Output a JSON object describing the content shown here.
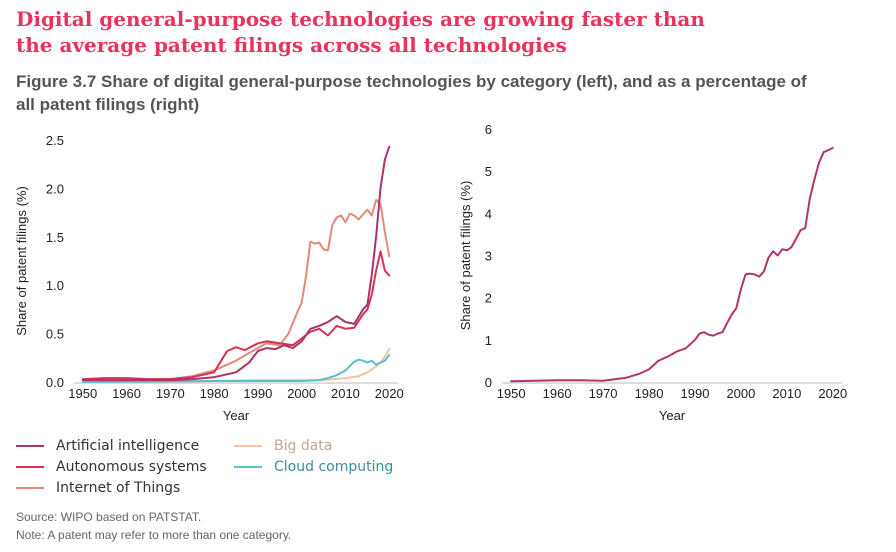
{
  "headline": {
    "line1": "Digital general-purpose technologies are growing faster than",
    "line2": "the average patent filings across all technologies"
  },
  "figure_title": {
    "line1": "Figure 3.7 Share of digital general-purpose technologies by category (left), and as a percentage of",
    "line2": "all patent filings (right)"
  },
  "colors": {
    "ai": "#a8336e",
    "autonomous": "#d93150",
    "iot": "#e08a7a",
    "bigdata": "#f2c3a4",
    "cloud": "#5bbfcb",
    "total": "#b5336c"
  },
  "chart_data": [
    {
      "type": "line",
      "title": "",
      "xlabel": "Year",
      "ylabel": "Share of patent filings (%)",
      "xlim": [
        1948,
        2022
      ],
      "ylim": [
        0,
        2.5
      ],
      "xticks": [
        1950,
        1960,
        1970,
        1980,
        1990,
        2000,
        2010,
        2020
      ],
      "yticks": [
        "0.0",
        "0.5",
        "1.0",
        "1.5",
        "2.0",
        "2.5"
      ],
      "legend_position": "bottom",
      "series": [
        {
          "name": "Big data",
          "color_key": "bigdata",
          "x": [
            1950,
            1980,
            1990,
            2000,
            2005,
            2010,
            2013,
            2015,
            2017,
            2018,
            2019,
            2020
          ],
          "y": [
            0.0,
            0.01,
            0.02,
            0.02,
            0.02,
            0.04,
            0.06,
            0.1,
            0.16,
            0.2,
            0.26,
            0.34
          ]
        },
        {
          "name": "Cloud computing",
          "color_key": "cloud",
          "x": [
            1950,
            1980,
            1990,
            2000,
            2004,
            2006,
            2008,
            2010,
            2012,
            2013,
            2014,
            2015,
            2016,
            2017,
            2018,
            2019,
            2020
          ],
          "y": [
            0.0,
            0.01,
            0.01,
            0.01,
            0.02,
            0.04,
            0.07,
            0.12,
            0.21,
            0.23,
            0.22,
            0.2,
            0.22,
            0.18,
            0.2,
            0.22,
            0.28
          ]
        },
        {
          "name": "Internet of Things",
          "color_key": "iot",
          "x": [
            1950,
            1955,
            1960,
            1965,
            1970,
            1975,
            1980,
            1985,
            1988,
            1990,
            1992,
            1995,
            1997,
            1999,
            2000,
            2001,
            2002,
            2003,
            2004,
            2005,
            2006,
            2007,
            2008,
            2009,
            2010,
            2011,
            2012,
            2013,
            2014,
            2015,
            2016,
            2017,
            2018,
            2019,
            2020
          ],
          "y": [
            0.02,
            0.02,
            0.02,
            0.02,
            0.03,
            0.06,
            0.12,
            0.22,
            0.3,
            0.35,
            0.4,
            0.38,
            0.5,
            0.72,
            0.82,
            1.1,
            1.45,
            1.43,
            1.44,
            1.37,
            1.36,
            1.62,
            1.7,
            1.72,
            1.65,
            1.74,
            1.72,
            1.68,
            1.73,
            1.78,
            1.72,
            1.88,
            1.84,
            1.55,
            1.3
          ]
        },
        {
          "name": "Autonomous systems",
          "color_key": "autonomous",
          "x": [
            1950,
            1955,
            1960,
            1965,
            1970,
            1975,
            1980,
            1982,
            1983,
            1985,
            1987,
            1990,
            1992,
            1995,
            1998,
            2000,
            2002,
            2004,
            2006,
            2008,
            2010,
            2012,
            2014,
            2015,
            2016,
            2017,
            2018,
            2019,
            2020
          ],
          "y": [
            0.03,
            0.04,
            0.04,
            0.03,
            0.03,
            0.05,
            0.1,
            0.25,
            0.32,
            0.36,
            0.33,
            0.4,
            0.42,
            0.4,
            0.38,
            0.45,
            0.52,
            0.55,
            0.48,
            0.58,
            0.55,
            0.56,
            0.7,
            0.75,
            0.9,
            1.15,
            1.35,
            1.15,
            1.1
          ]
        },
        {
          "name": "Artificial intelligence",
          "color_key": "ai",
          "x": [
            1950,
            1955,
            1960,
            1965,
            1970,
            1975,
            1980,
            1985,
            1988,
            1990,
            1992,
            1994,
            1996,
            1998,
            2000,
            2002,
            2004,
            2006,
            2008,
            2010,
            2012,
            2014,
            2015,
            2016,
            2017,
            2018,
            2019,
            2020
          ],
          "y": [
            0.02,
            0.02,
            0.02,
            0.02,
            0.02,
            0.03,
            0.05,
            0.1,
            0.2,
            0.32,
            0.35,
            0.34,
            0.38,
            0.35,
            0.42,
            0.55,
            0.58,
            0.62,
            0.68,
            0.62,
            0.6,
            0.75,
            0.8,
            1.1,
            1.5,
            2.0,
            2.3,
            2.43
          ]
        }
      ]
    },
    {
      "type": "line",
      "title": "",
      "xlabel": "Year",
      "ylabel": "Share of patent filings (%)",
      "xlim": [
        1948,
        2022
      ],
      "ylim": [
        0,
        6
      ],
      "xticks": [
        1950,
        1960,
        1970,
        1980,
        1990,
        2000,
        2010,
        2020
      ],
      "yticks": [
        "0",
        "1",
        "2",
        "3",
        "4",
        "5",
        "6"
      ],
      "legend_position": "none",
      "series": [
        {
          "color_key": "total",
          "x": [
            1950,
            1955,
            1960,
            1965,
            1970,
            1975,
            1978,
            1980,
            1982,
            1984,
            1986,
            1988,
            1990,
            1991,
            1992,
            1993,
            1994,
            1995,
            1996,
            1997,
            1998,
            1999,
            2000,
            2001,
            2002,
            2003,
            2004,
            2005,
            2006,
            2007,
            2008,
            2009,
            2010,
            2011,
            2012,
            2013,
            2014,
            2015,
            2016,
            2017,
            2018,
            2019,
            2020
          ],
          "y": [
            0.02,
            0.03,
            0.04,
            0.04,
            0.03,
            0.1,
            0.2,
            0.3,
            0.5,
            0.6,
            0.72,
            0.8,
            1.0,
            1.15,
            1.18,
            1.12,
            1.1,
            1.15,
            1.18,
            1.4,
            1.6,
            1.75,
            2.2,
            2.55,
            2.57,
            2.55,
            2.5,
            2.62,
            2.95,
            3.1,
            3.0,
            3.15,
            3.12,
            3.2,
            3.4,
            3.6,
            3.65,
            4.35,
            4.8,
            5.2,
            5.45,
            5.5,
            5.55
          ]
        }
      ]
    }
  ],
  "legend": [
    {
      "label": "Artificial intelligence",
      "color_key": "ai"
    },
    {
      "label": "Autonomous systems",
      "color_key": "autonomous"
    },
    {
      "label": "Internet of Things",
      "color_key": "iot"
    },
    {
      "label": "Big data",
      "color_key": "bigdata"
    },
    {
      "label": "Cloud computing",
      "color_key": "cloud"
    }
  ],
  "footer": {
    "source": "Source: WIPO based on PATSTAT.",
    "note": "Note: A patent may refer to more than one category."
  }
}
